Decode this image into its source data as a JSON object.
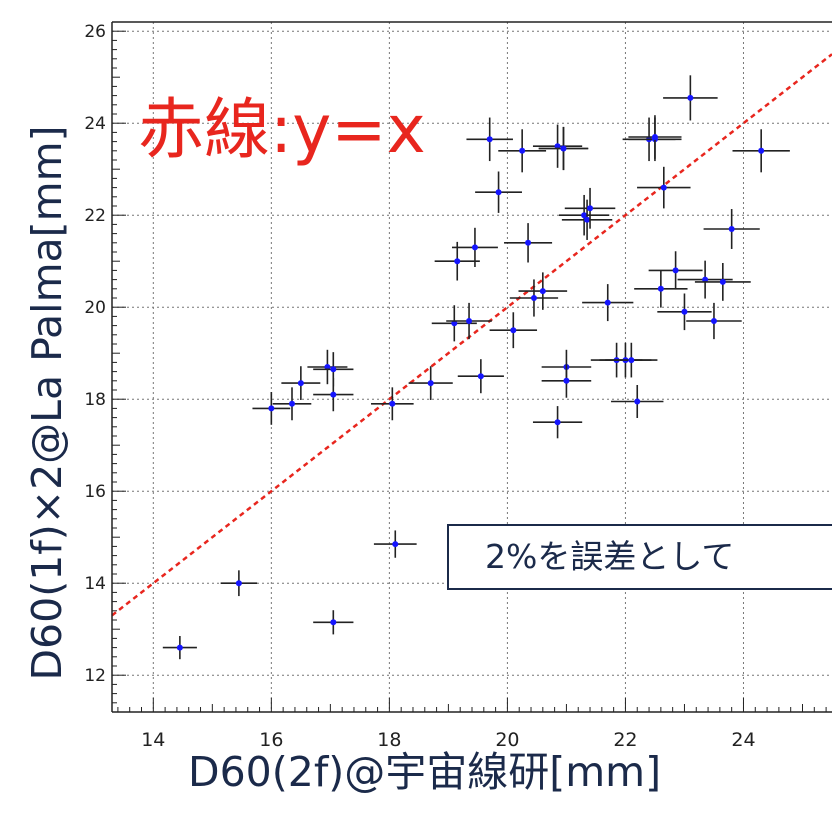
{
  "chart_data": {
    "type": "scatter",
    "title": "",
    "xlabel": "D60(2f)@宇宙線研[mm]",
    "ylabel": "D60(1f)×2@La Palma[mm]",
    "xlim": [
      13.3,
      25.5
    ],
    "ylim": [
      11.2,
      26.2
    ],
    "x_ticks": [
      14,
      16,
      18,
      20,
      22,
      24
    ],
    "y_ticks": [
      12,
      14,
      16,
      18,
      20,
      22,
      24,
      26
    ],
    "grid": true,
    "reference_line": {
      "label": "赤線:y=x",
      "slope": 1,
      "intercept": 0,
      "color": "#e8261e"
    },
    "note": "2%を誤差として",
    "marker_color": "#1515ff",
    "error_color": "#222222",
    "relative_error": 0.02,
    "series": [
      {
        "x": [
          14.45,
          15.45,
          16.0,
          16.35,
          16.5,
          16.95,
          17.05,
          17.05,
          17.05,
          18.05,
          18.1,
          18.7,
          19.1,
          19.15,
          19.35,
          19.45,
          19.55,
          19.7,
          19.85,
          20.1,
          20.25,
          20.35,
          20.45,
          20.6,
          20.85,
          20.85,
          20.95,
          20.95,
          21.0,
          21.0,
          21.3,
          21.35,
          21.4,
          21.7,
          21.85,
          22.0,
          22.1,
          22.2,
          22.4,
          22.5,
          22.5,
          22.6,
          22.65,
          22.85,
          23.0,
          23.1,
          23.35,
          23.5,
          23.65,
          23.8,
          24.3
        ],
        "y": [
          12.6,
          14.0,
          17.8,
          17.9,
          18.35,
          18.7,
          18.65,
          18.1,
          13.15,
          17.9,
          14.85,
          18.35,
          19.65,
          21.0,
          19.7,
          21.3,
          18.5,
          23.65,
          22.5,
          19.5,
          23.4,
          21.4,
          20.2,
          20.35,
          17.5,
          23.5,
          23.45,
          23.45,
          18.7,
          18.4,
          22.0,
          21.9,
          22.15,
          20.1,
          18.85,
          18.85,
          18.85,
          17.95,
          23.65,
          23.65,
          23.7,
          20.4,
          22.6,
          20.8,
          19.9,
          24.55,
          20.6,
          19.7,
          20.55,
          21.7,
          23.4
        ]
      }
    ]
  }
}
